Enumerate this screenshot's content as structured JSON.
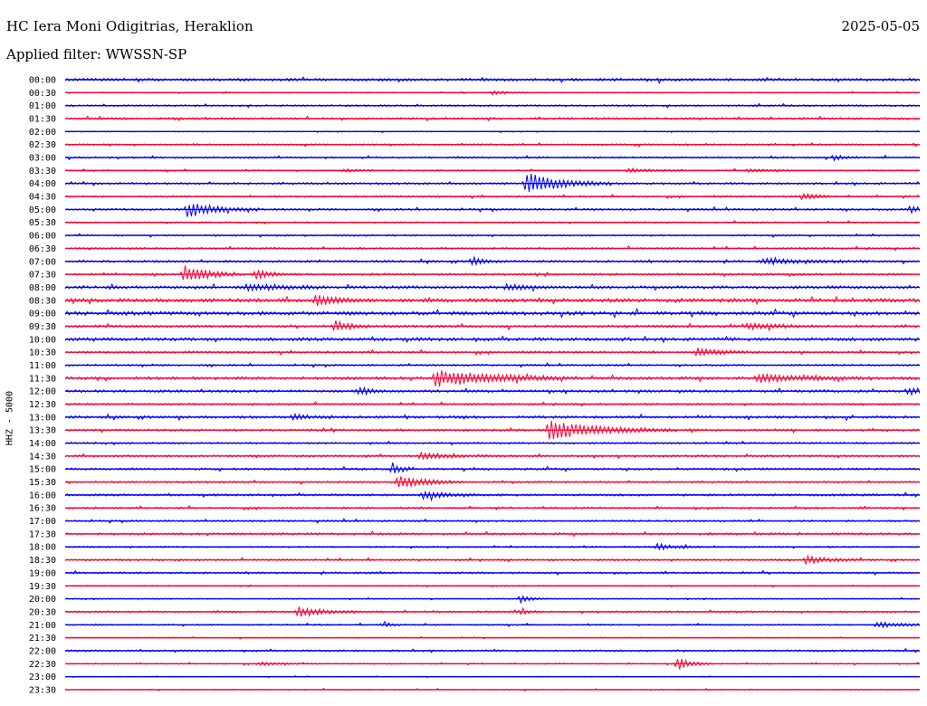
{
  "header": {
    "station": "HC Iera Moni Odigitrias, Heraklion",
    "date": "2025-05-05",
    "filter": "Applied filter: WWSSN-SP"
  },
  "colors": {
    "a": "#0000ff",
    "b": "#ff0033"
  },
  "chart_data": {
    "type": "line",
    "title": "HC Iera Moni Odigitrias, Heraklion",
    "ylabel": "HHZ - 5000",
    "xlabel": "",
    "grid": false,
    "legend": "none",
    "x_unit": "minutes",
    "x_range": [
      0,
      30
    ],
    "rows": [
      "00:00",
      "00:30",
      "01:00",
      "01:30",
      "02:00",
      "02:30",
      "03:00",
      "03:30",
      "04:00",
      "04:30",
      "05:00",
      "05:30",
      "06:00",
      "06:30",
      "07:00",
      "07:30",
      "08:00",
      "08:30",
      "09:00",
      "09:30",
      "10:00",
      "10:30",
      "11:00",
      "11:30",
      "12:00",
      "12:30",
      "13:00",
      "13:30",
      "14:00",
      "14:30",
      "15:00",
      "15:30",
      "16:00",
      "16:30",
      "17:00",
      "17:30",
      "18:00",
      "18:30",
      "19:00",
      "19:30",
      "20:00",
      "20:30",
      "21:00",
      "21:30",
      "22:00",
      "22:30",
      "23:00",
      "23:30"
    ],
    "noise": [
      1.5,
      0.6,
      1.0,
      1.2,
      0.5,
      0.9,
      1.0,
      0.8,
      1.2,
      1.0,
      1.1,
      0.8,
      0.9,
      1.0,
      1.2,
      1.2,
      1.6,
      2.0,
      2.0,
      1.4,
      1.8,
      1.2,
      1.0,
      1.6,
      1.4,
      1.0,
      1.4,
      1.2,
      1.0,
      1.2,
      1.2,
      1.0,
      1.2,
      1.0,
      1.0,
      1.2,
      0.8,
      1.0,
      1.0,
      0.6,
      0.6,
      1.0,
      0.8,
      0.5,
      1.0,
      0.6,
      0.4,
      0.6
    ],
    "events": [
      {
        "row": "00:30",
        "t": 15.0,
        "amp": 2,
        "dur": 0.6
      },
      {
        "row": "03:00",
        "t": 27.0,
        "amp": 3,
        "dur": 0.4
      },
      {
        "row": "03:30",
        "t": 9.8,
        "amp": 2,
        "dur": 0.4
      },
      {
        "row": "03:30",
        "t": 19.8,
        "amp": 2,
        "dur": 0.8
      },
      {
        "row": "03:30",
        "t": 24.0,
        "amp": 2,
        "dur": 0.8
      },
      {
        "row": "04:00",
        "t": 16.2,
        "amp": 11,
        "dur": 1.2
      },
      {
        "row": "04:30",
        "t": 25.9,
        "amp": 4,
        "dur": 0.4
      },
      {
        "row": "05:00",
        "t": 4.3,
        "amp": 8,
        "dur": 1.0
      },
      {
        "row": "05:00",
        "t": 29.7,
        "amp": 4,
        "dur": 0.4
      },
      {
        "row": "07:00",
        "t": 14.3,
        "amp": 5,
        "dur": 0.4
      },
      {
        "row": "07:00",
        "t": 24.5,
        "amp": 3,
        "dur": 1.5
      },
      {
        "row": "07:30",
        "t": 4.2,
        "amp": 10,
        "dur": 0.8
      },
      {
        "row": "07:30",
        "t": 6.7,
        "amp": 5,
        "dur": 0.5
      },
      {
        "row": "08:00",
        "t": 6.4,
        "amp": 4,
        "dur": 1.2
      },
      {
        "row": "08:00",
        "t": 15.5,
        "amp": 3,
        "dur": 0.8
      },
      {
        "row": "08:30",
        "t": 8.8,
        "amp": 5,
        "dur": 0.8
      },
      {
        "row": "09:30",
        "t": 9.5,
        "amp": 6,
        "dur": 0.5
      },
      {
        "row": "09:30",
        "t": 24.0,
        "amp": 3,
        "dur": 1.0
      },
      {
        "row": "10:30",
        "t": 22.2,
        "amp": 4,
        "dur": 0.8
      },
      {
        "row": "11:30",
        "t": 13.0,
        "amp": 9,
        "dur": 2.0
      },
      {
        "row": "11:30",
        "t": 24.3,
        "amp": 5,
        "dur": 1.5
      },
      {
        "row": "12:00",
        "t": 10.3,
        "amp": 5,
        "dur": 0.4
      },
      {
        "row": "12:00",
        "t": 29.6,
        "amp": 4,
        "dur": 0.6
      },
      {
        "row": "13:00",
        "t": 8.0,
        "amp": 3,
        "dur": 0.5
      },
      {
        "row": "13:30",
        "t": 17.0,
        "amp": 10,
        "dur": 1.8
      },
      {
        "row": "14:30",
        "t": 12.5,
        "amp": 3,
        "dur": 1.2
      },
      {
        "row": "15:00",
        "t": 11.5,
        "amp": 7,
        "dur": 0.3
      },
      {
        "row": "15:30",
        "t": 11.7,
        "amp": 8,
        "dur": 0.9
      },
      {
        "row": "16:00",
        "t": 12.6,
        "amp": 5,
        "dur": 0.8
      },
      {
        "row": "18:00",
        "t": 20.8,
        "amp": 4,
        "dur": 0.6
      },
      {
        "row": "18:30",
        "t": 26.0,
        "amp": 4,
        "dur": 0.8
      },
      {
        "row": "20:00",
        "t": 16.0,
        "amp": 4,
        "dur": 0.4
      },
      {
        "row": "20:30",
        "t": 8.2,
        "amp": 6,
        "dur": 0.8
      },
      {
        "row": "20:30",
        "t": 16.0,
        "amp": 3,
        "dur": 0.3
      },
      {
        "row": "21:00",
        "t": 11.2,
        "amp": 3,
        "dur": 0.3
      },
      {
        "row": "21:00",
        "t": 28.5,
        "amp": 3,
        "dur": 1.4
      },
      {
        "row": "22:30",
        "t": 21.5,
        "amp": 7,
        "dur": 0.5
      },
      {
        "row": "22:30",
        "t": 6.9,
        "amp": 2,
        "dur": 0.8
      }
    ]
  }
}
